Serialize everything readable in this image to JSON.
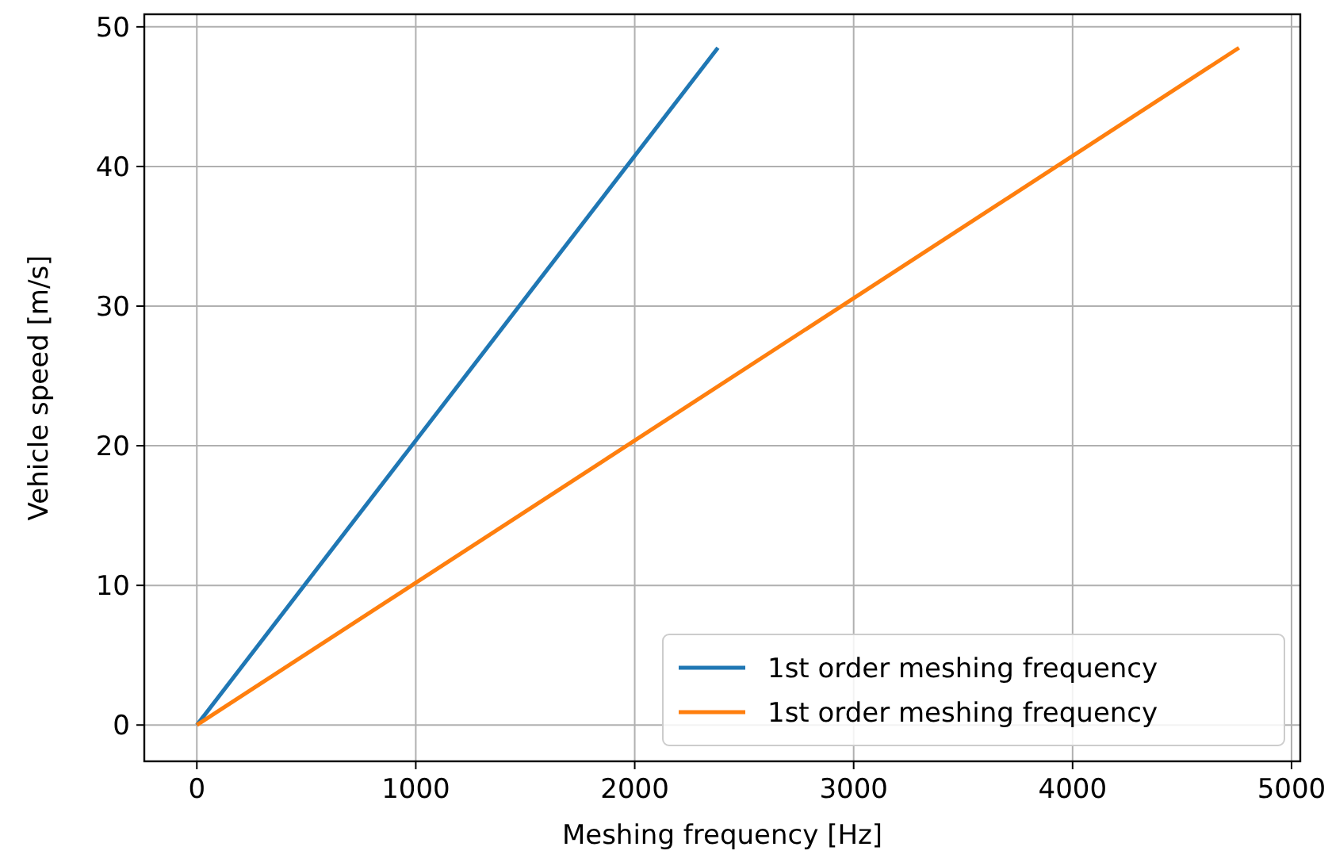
{
  "chart_data": {
    "type": "line",
    "xlabel": "Meshing frequency [Hz]",
    "ylabel": "Vehicle speed [m/s]",
    "series": [
      {
        "name": "1st order meshing frequency",
        "color": "#1f77b4",
        "x": [
          0,
          2380
        ],
        "values": [
          0,
          48.5
        ]
      },
      {
        "name": "1st order meshing frequency",
        "color": "#ff7f0e",
        "x": [
          0,
          4760
        ],
        "values": [
          0,
          48.5
        ]
      }
    ],
    "xlim": [
      -240,
      5040
    ],
    "ylim": [
      -2.6,
      50.9
    ],
    "xticks": [
      0,
      1000,
      2000,
      3000,
      4000,
      5000
    ],
    "yticks": [
      0,
      10,
      20,
      30,
      40,
      50
    ],
    "grid": true,
    "legend": "bottom right",
    "line_style": "solid"
  }
}
